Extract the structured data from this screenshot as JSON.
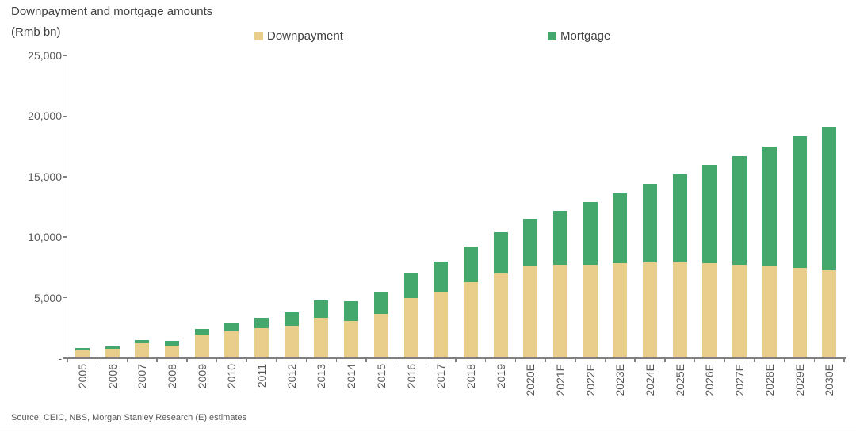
{
  "header": {
    "title": "Downpayment and mortgage amounts",
    "unit_label": "(Rmb bn)"
  },
  "source_note": "Source: CEIC, NBS, Morgan Stanley Research (E) estimates",
  "colors": {
    "downpayment": "#E9CD8A",
    "mortgage": "#44A76B",
    "axis": "#7F7F7F",
    "title_text": "#3F3F3F",
    "tick_text": "#595959",
    "divider": "#CCCCCC"
  },
  "chart_data": {
    "type": "bar",
    "stacked": true,
    "title": "Downpayment and mortgage amounts",
    "unit": "Rmb bn",
    "categories": [
      "2005",
      "2006",
      "2007",
      "2008",
      "2009",
      "2010",
      "2011",
      "2012",
      "2013",
      "2014",
      "2015",
      "2016",
      "2017",
      "2018",
      "2019",
      "2020E",
      "2021E",
      "2022E",
      "2023E",
      "2024E",
      "2025E",
      "2026E",
      "2027E",
      "2028E",
      "2029E",
      "2030E"
    ],
    "series": [
      {
        "name": "Downpayment",
        "color": "#E9CD8A",
        "values": [
          650,
          770,
          1220,
          1050,
          1950,
          2250,
          2500,
          2700,
          3350,
          3100,
          3650,
          4950,
          5500,
          6300,
          7000,
          7600,
          7700,
          7750,
          7850,
          7900,
          7900,
          7850,
          7700,
          7600,
          7450,
          7250
        ]
      },
      {
        "name": "Mortgage",
        "color": "#44A76B",
        "values": [
          200,
          230,
          300,
          370,
          500,
          650,
          850,
          1100,
          1450,
          1600,
          1850,
          2150,
          2500,
          2950,
          3400,
          3900,
          4500,
          5150,
          5750,
          6500,
          7300,
          8100,
          9000,
          9900,
          10850,
          11850
        ]
      }
    ],
    "ylim": [
      0,
      25000
    ],
    "yticks": [
      {
        "value": 0,
        "label": "-"
      },
      {
        "value": 5000,
        "label": "5,000"
      },
      {
        "value": 10000,
        "label": "10,000"
      },
      {
        "value": 15000,
        "label": "15,000"
      },
      {
        "value": 20000,
        "label": "20,000"
      },
      {
        "value": 25000,
        "label": "25,000"
      }
    ],
    "grid": false,
    "legend_position": "top"
  }
}
